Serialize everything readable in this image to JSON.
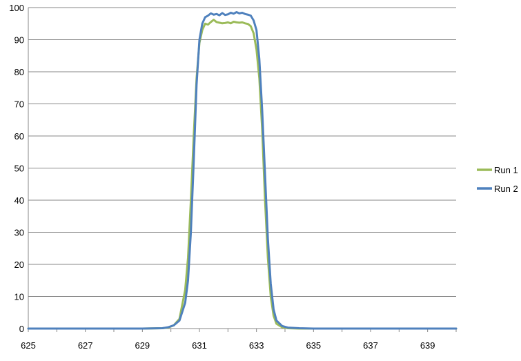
{
  "chart_data": {
    "type": "line",
    "title": "",
    "xlabel": "",
    "ylabel": "",
    "xlim": [
      625,
      640
    ],
    "ylim": [
      0,
      100
    ],
    "x_ticks": [
      625,
      627,
      629,
      631,
      633,
      635,
      637,
      639
    ],
    "y_ticks": [
      0,
      10,
      20,
      30,
      40,
      50,
      60,
      70,
      80,
      90,
      100
    ],
    "grid": "horizontal",
    "legend_position": "right",
    "series": [
      {
        "name": "Run 1",
        "color": "#9bbb59",
        "points": [
          [
            625,
            0
          ],
          [
            626,
            0
          ],
          [
            627,
            0
          ],
          [
            628,
            0
          ],
          [
            629,
            0
          ],
          [
            629.7,
            0.1
          ],
          [
            629.9,
            0.3
          ],
          [
            630.1,
            1
          ],
          [
            630.3,
            3
          ],
          [
            630.5,
            12
          ],
          [
            630.6,
            22
          ],
          [
            630.7,
            40
          ],
          [
            630.8,
            60
          ],
          [
            630.9,
            78
          ],
          [
            631.0,
            89
          ],
          [
            631.1,
            93
          ],
          [
            631.2,
            95
          ],
          [
            631.3,
            94.7
          ],
          [
            631.4,
            95.5
          ],
          [
            631.5,
            96.2
          ],
          [
            631.6,
            95.5
          ],
          [
            631.7,
            95.3
          ],
          [
            631.8,
            95.1
          ],
          [
            631.9,
            95.2
          ],
          [
            632.0,
            95.4
          ],
          [
            632.1,
            95.1
          ],
          [
            632.2,
            95.6
          ],
          [
            632.3,
            95.4
          ],
          [
            632.4,
            95.3
          ],
          [
            632.5,
            95.4
          ],
          [
            632.6,
            95.1
          ],
          [
            632.7,
            94.9
          ],
          [
            632.8,
            94.2
          ],
          [
            632.9,
            92
          ],
          [
            633.0,
            87
          ],
          [
            633.1,
            78
          ],
          [
            633.2,
            62
          ],
          [
            633.3,
            40
          ],
          [
            633.4,
            22
          ],
          [
            633.5,
            10
          ],
          [
            633.6,
            4
          ],
          [
            633.7,
            1.5
          ],
          [
            633.9,
            0.4
          ],
          [
            634.1,
            0.1
          ],
          [
            634.5,
            0
          ],
          [
            635,
            0
          ],
          [
            636,
            0
          ],
          [
            637,
            0
          ],
          [
            638,
            0
          ],
          [
            639,
            0
          ],
          [
            640,
            0
          ]
        ]
      },
      {
        "name": "Run 2",
        "color": "#4f81bd",
        "points": [
          [
            625,
            0
          ],
          [
            626,
            0
          ],
          [
            627,
            0
          ],
          [
            628,
            0
          ],
          [
            629,
            0
          ],
          [
            629.7,
            0.1
          ],
          [
            629.9,
            0.4
          ],
          [
            630.1,
            1
          ],
          [
            630.3,
            2.5
          ],
          [
            630.5,
            8
          ],
          [
            630.6,
            15
          ],
          [
            630.7,
            30
          ],
          [
            630.8,
            52
          ],
          [
            630.9,
            76
          ],
          [
            631.0,
            90
          ],
          [
            631.1,
            95
          ],
          [
            631.2,
            97
          ],
          [
            631.3,
            97.5
          ],
          [
            631.4,
            98.2
          ],
          [
            631.5,
            97.8
          ],
          [
            631.6,
            98
          ],
          [
            631.7,
            97.6
          ],
          [
            631.8,
            98.3
          ],
          [
            631.9,
            97.7
          ],
          [
            632.0,
            97.9
          ],
          [
            632.1,
            98.4
          ],
          [
            632.2,
            98.1
          ],
          [
            632.3,
            98.6
          ],
          [
            632.4,
            98.2
          ],
          [
            632.5,
            98.4
          ],
          [
            632.6,
            98
          ],
          [
            632.7,
            97.8
          ],
          [
            632.8,
            97.5
          ],
          [
            632.9,
            96
          ],
          [
            633.0,
            93
          ],
          [
            633.1,
            84
          ],
          [
            633.2,
            68
          ],
          [
            633.3,
            48
          ],
          [
            633.4,
            28
          ],
          [
            633.5,
            14
          ],
          [
            633.6,
            6
          ],
          [
            633.7,
            2.5
          ],
          [
            633.9,
            0.8
          ],
          [
            634.1,
            0.3
          ],
          [
            634.5,
            0.1
          ],
          [
            635,
            0
          ],
          [
            636,
            0
          ],
          [
            637,
            0
          ],
          [
            638,
            0
          ],
          [
            639,
            0
          ],
          [
            640,
            0
          ]
        ]
      }
    ]
  }
}
